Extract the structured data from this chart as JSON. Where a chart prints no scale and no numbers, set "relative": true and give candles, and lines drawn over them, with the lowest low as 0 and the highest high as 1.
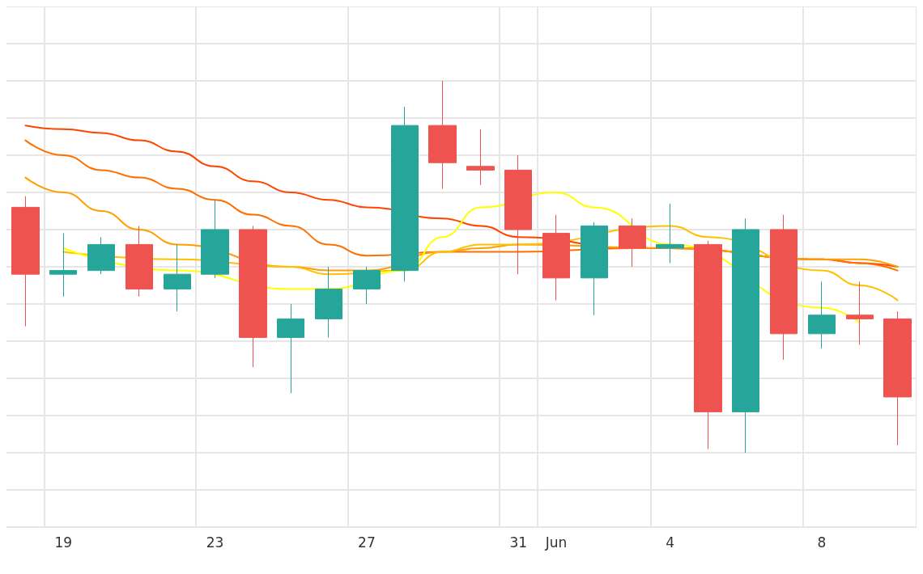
{
  "chart_data": {
    "type": "candlestick",
    "relative": true,
    "grid": true,
    "categories": [
      null,
      "19",
      null,
      null,
      null,
      "23",
      null,
      null,
      null,
      "27",
      null,
      null,
      null,
      "31",
      "Jun",
      null,
      null,
      "4",
      null,
      null,
      null,
      "8",
      null,
      null
    ],
    "ohlc": [
      [
        0.66,
        0.69,
        0.34,
        0.48
      ],
      [
        0.48,
        0.59,
        0.42,
        0.49
      ],
      [
        0.49,
        0.58,
        0.48,
        0.56
      ],
      [
        0.56,
        0.61,
        0.42,
        0.44
      ],
      [
        0.44,
        0.56,
        0.38,
        0.48
      ],
      [
        0.48,
        0.68,
        0.47,
        0.6
      ],
      [
        0.6,
        0.61,
        0.23,
        0.31
      ],
      [
        0.31,
        0.4,
        0.16,
        0.36
      ],
      [
        0.36,
        0.5,
        0.31,
        0.44
      ],
      [
        0.44,
        0.5,
        0.4,
        0.49
      ],
      [
        0.49,
        0.93,
        0.46,
        0.88
      ],
      [
        0.88,
        1,
        0.71,
        0.78
      ],
      [
        0.77,
        0.87,
        0.72,
        0.76
      ],
      [
        0.76,
        0.8,
        0.48,
        0.6
      ],
      [
        0.59,
        0.64,
        0.41,
        0.47
      ],
      [
        0.47,
        0.62,
        0.37,
        0.61
      ],
      [
        0.61,
        0.63,
        0.5,
        0.55
      ],
      [
        0.55,
        0.67,
        0.51,
        0.56
      ],
      [
        0.56,
        0.57,
        0.01,
        0.11
      ],
      [
        0.11,
        0.63,
        0,
        0.6
      ],
      [
        0.6,
        0.64,
        0.25,
        0.32
      ],
      [
        0.32,
        0.46,
        0.28,
        0.37
      ],
      [
        0.37,
        0.46,
        0.29,
        0.36
      ],
      [
        0.36,
        0.38,
        0.02,
        0.15
      ]
    ],
    "colors": [
      "#ef5350",
      "#26a69a",
      "#26a69a",
      "#ef5350",
      "#26a69a",
      "#26a69a",
      "#ef5350",
      "#26a69a",
      "#26a69a",
      "#26a69a",
      "#26a69a",
      "#ef5350",
      "#ef5350",
      "#ef5350",
      "#ef5350",
      "#26a69a",
      "#ef5350",
      "#26a69a",
      "#ef5350",
      "#26a69a",
      "#ef5350",
      "#26a69a",
      "#ef5350",
      "#ef5350"
    ],
    "series": [
      {
        "type": "line",
        "color": "#ff4500",
        "values": [
          0.88,
          0.87,
          0.86,
          0.84,
          0.81,
          0.77,
          0.73,
          0.7,
          0.68,
          0.66,
          null,
          0.63,
          0.61,
          0.58,
          null,
          null,
          0.55,
          0.55,
          null,
          null,
          null,
          0.52,
          0.51,
          0.5
        ]
      },
      {
        "type": "line",
        "color": "#ff7000",
        "values": [
          0.84,
          0.8,
          0.76,
          0.74,
          0.71,
          0.68,
          0.64,
          0.61,
          0.56,
          0.53,
          null,
          0.54,
          0.54,
          0.54,
          null,
          null,
          0.55,
          0.55,
          null,
          null,
          null,
          0.52,
          0.51,
          0.49
        ]
      },
      {
        "type": "line",
        "color": "#ff9f00",
        "values": [
          0.74,
          0.7,
          0.65,
          0.6,
          0.56,
          null,
          null,
          0.5,
          0.49,
          0.49,
          null,
          0.54,
          0.55,
          0.56,
          null,
          null,
          null,
          0.55,
          null,
          null,
          null,
          0.52,
          0.52,
          0.5
        ]
      },
      {
        "type": "line",
        "color": "#ffc000",
        "values": [
          null,
          0.54,
          null,
          null,
          0.52,
          null,
          null,
          0.5,
          0.48,
          null,
          0.49,
          0.54,
          0.56,
          0.56,
          null,
          null,
          null,
          0.61,
          0.58,
          null,
          null,
          0.49,
          0.45,
          0.41
        ]
      },
      {
        "type": "line",
        "color": "#ffff00",
        "values": [
          null,
          0.55,
          null,
          null,
          0.49,
          null,
          null,
          0.44,
          0.44,
          null,
          0.49,
          0.58,
          0.66,
          null,
          0.7,
          0.66,
          null,
          0.56,
          null,
          null,
          null,
          0.39,
          0.35,
          null
        ]
      }
    ]
  }
}
